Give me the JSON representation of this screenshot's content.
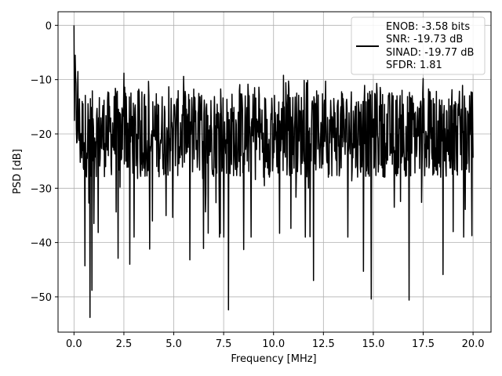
{
  "chart_data": {
    "type": "line",
    "title": "",
    "xlabel": "Frequency [MHz]",
    "ylabel": "PSD [dB]",
    "xlim": [
      -0.8,
      20.9
    ],
    "ylim": [
      -56.5,
      2.5
    ],
    "xticks": [
      0.0,
      2.5,
      5.0,
      7.5,
      10.0,
      12.5,
      15.0,
      17.5,
      20.0
    ],
    "xtick_labels": [
      "0.0",
      "2.5",
      "5.0",
      "7.5",
      "10.0",
      "12.5",
      "15.0",
      "17.5",
      "20.0"
    ],
    "yticks": [
      0,
      -10,
      -20,
      -30,
      -40,
      -50
    ],
    "ytick_labels": [
      "0",
      "−10",
      "−20",
      "−30",
      "−40",
      "−50"
    ],
    "grid": true,
    "legend_position": "top-right",
    "legend": [
      "ENOB: -3.58 bits",
      "SNR: -19.73 dB",
      "SINAD: -19.77 dB",
      "SFDR: 1.81"
    ],
    "series": [
      {
        "name": "ENOB: -3.58 bits",
        "color": "#000000",
        "x_start": 0.0,
        "x_end": 20.0,
        "points": 1024,
        "peak": {
          "x": 0.0,
          "y": 0.0
        },
        "noise_floor_mean": -20,
        "notable_minima": [
          {
            "x": 0.55,
            "y": -44.3
          },
          {
            "x": 0.8,
            "y": -53.8
          },
          {
            "x": 0.9,
            "y": -48.8
          },
          {
            "x": 1.0,
            "y": -36.5
          },
          {
            "x": 2.2,
            "y": -42.9
          },
          {
            "x": 2.8,
            "y": -44.0
          },
          {
            "x": 3.8,
            "y": -41.2
          },
          {
            "x": 5.8,
            "y": -43.2
          },
          {
            "x": 6.5,
            "y": -41.1
          },
          {
            "x": 7.75,
            "y": -52.4
          },
          {
            "x": 8.5,
            "y": -41.3
          },
          {
            "x": 10.3,
            "y": -38.3
          },
          {
            "x": 12.0,
            "y": -47.0
          },
          {
            "x": 14.5,
            "y": -45.3
          },
          {
            "x": 14.9,
            "y": -50.4
          },
          {
            "x": 16.8,
            "y": -50.6
          },
          {
            "x": 18.5,
            "y": -45.9
          },
          {
            "x": 19.0,
            "y": -38.0
          }
        ],
        "notable_maxima": [
          {
            "x": 0.05,
            "y": -5.5
          },
          {
            "x": 0.2,
            "y": -8.5
          },
          {
            "x": 2.5,
            "y": -8.8
          },
          {
            "x": 5.5,
            "y": -9.4
          },
          {
            "x": 10.5,
            "y": -9.2
          },
          {
            "x": 17.5,
            "y": -9.8
          }
        ]
      }
    ]
  }
}
